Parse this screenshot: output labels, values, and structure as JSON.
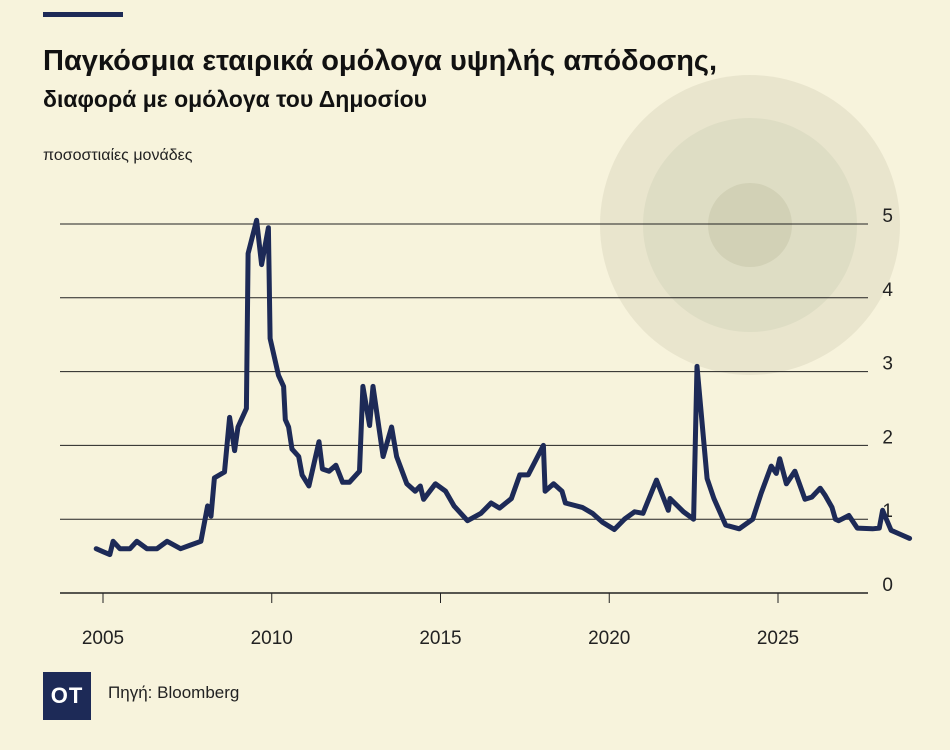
{
  "header": {
    "title": "Παγκόσμια εταιρικά ομόλογα υψηλής απόδοσης,",
    "subtitle": "διαφορά με ομόλογα του Δημοσίου"
  },
  "footer": {
    "logo_text": "OT",
    "source": "Πηγή: Bloomberg"
  },
  "colors": {
    "background": "#f7f3dc",
    "line": "#1d2a57",
    "decor_circle_outer": "#e9e5cd",
    "decor_circle_mid": "#deddc4",
    "decor_circle_inner": "#d2d1b6"
  },
  "chart_data": {
    "type": "line",
    "title": "Παγκόσμια εταιρικά ομόλογα υψηλής απόδοσης, διαφορά με ομόλογα του Δημοσίου",
    "xlabel": "",
    "ylabel": "ποσοστιαίες μονάδες",
    "xlim": [
      2004,
      2027.5
    ],
    "ylim": [
      0,
      5.2
    ],
    "x_ticks": [
      2005,
      2010,
      2015,
      2020,
      2025
    ],
    "y_ticks": [
      0,
      1,
      2,
      3,
      4,
      5
    ],
    "y_axis_position": "right",
    "grid": "horizontal",
    "series": [
      {
        "values": [
          [
            2004.8,
            0.6
          ],
          [
            2005.0,
            0.56
          ],
          [
            2005.2,
            0.52
          ],
          [
            2005.3,
            0.7
          ],
          [
            2005.5,
            0.6
          ],
          [
            2005.8,
            0.6
          ],
          [
            2006.0,
            0.7
          ],
          [
            2006.3,
            0.6
          ],
          [
            2006.6,
            0.6
          ],
          [
            2006.9,
            0.7
          ],
          [
            2007.3,
            0.6
          ],
          [
            2007.6,
            0.65
          ],
          [
            2007.9,
            0.7
          ],
          [
            2008.1,
            1.18
          ],
          [
            2008.2,
            1.04
          ],
          [
            2008.3,
            1.56
          ],
          [
            2008.6,
            1.64
          ],
          [
            2008.75,
            2.38
          ],
          [
            2008.9,
            1.93
          ],
          [
            2009.0,
            2.25
          ],
          [
            2009.25,
            2.5
          ],
          [
            2009.3,
            4.6
          ],
          [
            2009.55,
            5.05
          ],
          [
            2009.7,
            4.45
          ],
          [
            2009.9,
            4.95
          ],
          [
            2009.95,
            3.45
          ],
          [
            2010.2,
            2.95
          ],
          [
            2010.35,
            2.8
          ],
          [
            2010.4,
            2.35
          ],
          [
            2010.5,
            2.25
          ],
          [
            2010.6,
            1.95
          ],
          [
            2010.8,
            1.85
          ],
          [
            2010.9,
            1.6
          ],
          [
            2011.1,
            1.45
          ],
          [
            2011.3,
            1.85
          ],
          [
            2011.4,
            2.05
          ],
          [
            2011.5,
            1.68
          ],
          [
            2011.7,
            1.65
          ],
          [
            2011.9,
            1.73
          ],
          [
            2012.1,
            1.5
          ],
          [
            2012.3,
            1.5
          ],
          [
            2012.6,
            1.65
          ],
          [
            2012.7,
            2.8
          ],
          [
            2012.9,
            2.27
          ],
          [
            2013.0,
            2.8
          ],
          [
            2013.3,
            1.85
          ],
          [
            2013.55,
            2.25
          ],
          [
            2013.7,
            1.85
          ],
          [
            2014.0,
            1.48
          ],
          [
            2014.25,
            1.38
          ],
          [
            2014.4,
            1.45
          ],
          [
            2014.5,
            1.27
          ],
          [
            2014.85,
            1.48
          ],
          [
            2015.15,
            1.38
          ],
          [
            2015.4,
            1.18
          ],
          [
            2015.8,
            0.98
          ],
          [
            2016.2,
            1.08
          ],
          [
            2016.5,
            1.22
          ],
          [
            2016.75,
            1.15
          ],
          [
            2017.1,
            1.28
          ],
          [
            2017.35,
            1.6
          ],
          [
            2017.6,
            1.6
          ],
          [
            2018.05,
            2.0
          ],
          [
            2018.1,
            1.38
          ],
          [
            2018.35,
            1.48
          ],
          [
            2018.6,
            1.38
          ],
          [
            2018.7,
            1.22
          ],
          [
            2019.2,
            1.16
          ],
          [
            2019.5,
            1.08
          ],
          [
            2019.8,
            0.96
          ],
          [
            2020.15,
            0.86
          ],
          [
            2020.45,
            1.0
          ],
          [
            2020.75,
            1.1
          ],
          [
            2021.0,
            1.08
          ],
          [
            2021.4,
            1.53
          ],
          [
            2021.75,
            1.12
          ],
          [
            2021.8,
            1.28
          ],
          [
            2022.2,
            1.1
          ],
          [
            2022.5,
            1.0
          ],
          [
            2022.6,
            3.07
          ],
          [
            2022.9,
            1.55
          ],
          [
            2023.1,
            1.28
          ],
          [
            2023.45,
            0.92
          ],
          [
            2023.85,
            0.87
          ],
          [
            2024.25,
            1.0
          ],
          [
            2024.5,
            1.35
          ],
          [
            2024.8,
            1.72
          ],
          [
            2024.95,
            1.62
          ],
          [
            2025.05,
            1.82
          ],
          [
            2025.25,
            1.48
          ],
          [
            2025.5,
            1.65
          ],
          [
            2025.8,
            1.27
          ],
          [
            2026.0,
            1.3
          ],
          [
            2026.25,
            1.42
          ],
          [
            2026.4,
            1.32
          ],
          [
            2026.6,
            1.16
          ],
          [
            2026.7,
            1.0
          ],
          [
            2026.8,
            0.98
          ],
          [
            2027.1,
            1.05
          ],
          [
            2027.35,
            0.88
          ],
          [
            2027.8,
            0.87
          ],
          [
            2028.0,
            0.88
          ],
          [
            2028.1,
            1.12
          ],
          [
            2028.35,
            0.85
          ],
          [
            2028.6,
            0.8
          ],
          [
            2028.9,
            0.74
          ]
        ]
      }
    ]
  }
}
